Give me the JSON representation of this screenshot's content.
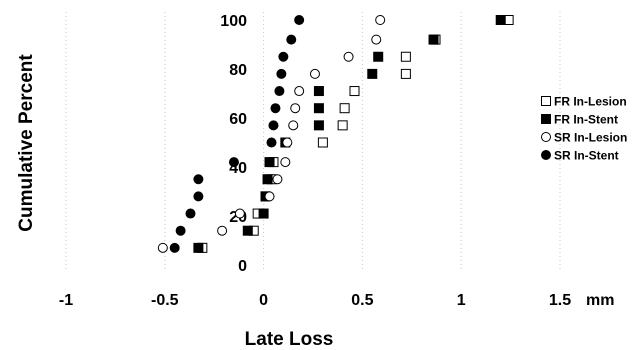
{
  "chart_data": {
    "type": "scatter",
    "title": "",
    "xlabel": "Late Loss",
    "ylabel": "Cumulative Percent",
    "x_unit": "mm",
    "xlim": [
      -1,
      1.5
    ],
    "ylim": [
      0,
      100
    ],
    "x_ticks": [
      "-1",
      "-0.5",
      "0",
      "0.5",
      "1",
      "1.5"
    ],
    "y_ticks": [
      "0",
      "20",
      "40",
      "60",
      "80",
      "100"
    ],
    "grid": "dotted vertical lines at x ticks",
    "legend_position": "right",
    "series": [
      {
        "name": "FR In-Lesion",
        "marker": "open-square",
        "points": [
          [
            -0.31,
            7
          ],
          [
            -0.05,
            14
          ],
          [
            -0.03,
            21
          ],
          [
            0.01,
            28
          ],
          [
            0.04,
            35
          ],
          [
            0.05,
            42
          ],
          [
            0.3,
            50
          ],
          [
            0.4,
            57
          ],
          [
            0.41,
            64
          ],
          [
            0.46,
            71
          ],
          [
            0.72,
            78
          ],
          [
            0.72,
            85
          ],
          [
            0.87,
            92
          ],
          [
            1.24,
            100
          ]
        ]
      },
      {
        "name": "FR In-Stent",
        "marker": "filled-square",
        "points": [
          [
            -0.33,
            7
          ],
          [
            -0.08,
            14
          ],
          [
            0.0,
            21
          ],
          [
            0.01,
            28
          ],
          [
            0.02,
            35
          ],
          [
            0.03,
            42
          ],
          [
            0.11,
            50
          ],
          [
            0.28,
            57
          ],
          [
            0.28,
            64
          ],
          [
            0.28,
            71
          ],
          [
            0.55,
            78
          ],
          [
            0.58,
            85
          ],
          [
            0.86,
            92
          ],
          [
            1.2,
            100
          ]
        ]
      },
      {
        "name": "SR In-Lesion",
        "marker": "open-circle",
        "points": [
          [
            -0.51,
            7
          ],
          [
            -0.21,
            14
          ],
          [
            -0.12,
            21
          ],
          [
            0.03,
            28
          ],
          [
            0.07,
            35
          ],
          [
            0.11,
            42
          ],
          [
            0.12,
            50
          ],
          [
            0.15,
            57
          ],
          [
            0.16,
            64
          ],
          [
            0.18,
            71
          ],
          [
            0.26,
            78
          ],
          [
            0.43,
            85
          ],
          [
            0.57,
            92
          ],
          [
            0.59,
            100
          ]
        ]
      },
      {
        "name": "SR In-Stent",
        "marker": "filled-circle",
        "points": [
          [
            -0.45,
            7
          ],
          [
            -0.42,
            14
          ],
          [
            -0.37,
            21
          ],
          [
            -0.33,
            35
          ],
          [
            -0.33,
            28
          ],
          [
            -0.15,
            42
          ],
          [
            0.04,
            50
          ],
          [
            0.05,
            57
          ],
          [
            0.06,
            64
          ],
          [
            0.08,
            71
          ],
          [
            0.09,
            78
          ],
          [
            0.1,
            85
          ],
          [
            0.14,
            92
          ],
          [
            0.18,
            100
          ]
        ]
      }
    ]
  }
}
